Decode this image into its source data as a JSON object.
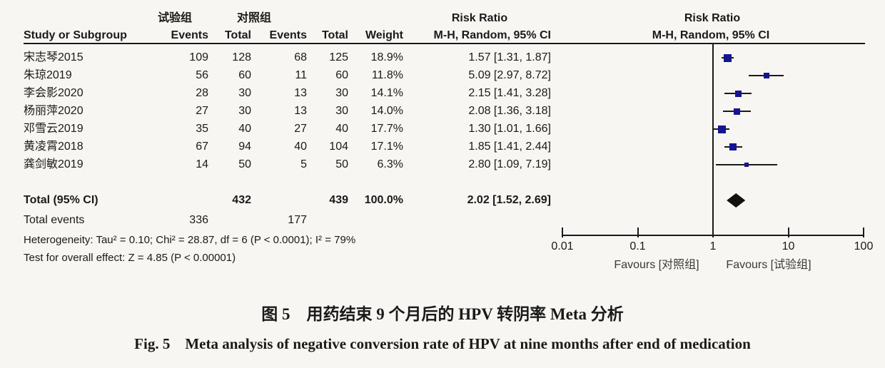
{
  "table": {
    "group1_header": "试验组",
    "group2_header": "对照组",
    "col_study": "Study or Subgroup",
    "col_events": "Events",
    "col_total": "Total",
    "col_weight": "Weight",
    "rr_title": "Risk Ratio",
    "rr_subtitle": "M-H, Random, 95% CI",
    "total_label": "Total (95% CI)",
    "total_events_label": "Total events",
    "heterogeneity": "Heterogeneity: Tau² = 0.10; Chi² = 28.87, df = 6 (P < 0.0001); I² = 79%",
    "overall_effect": "Test for overall effect: Z = 4.85 (P < 0.00001)"
  },
  "chart_data": {
    "type": "forest",
    "effect_measure": "Risk Ratio",
    "model": "M-H, Random, 95% CI",
    "x_scale": "log",
    "x_ticks": [
      "0.01",
      "0.1",
      "1",
      "10",
      "100"
    ],
    "x_range": [
      0.01,
      100
    ],
    "favours_left": "Favours [对照组]",
    "favours_right": "Favours [试验组]",
    "studies": [
      {
        "name": "宋志琴2015",
        "exp_events": "109",
        "exp_total": "128",
        "ctrl_events": "68",
        "ctrl_total": "125",
        "weight": "18.9%",
        "weight_pct": 18.9,
        "rr": 1.57,
        "ci_low": 1.31,
        "ci_high": 1.87,
        "rr_text": "1.57 [1.31, 1.87]"
      },
      {
        "name": "朱琼2019",
        "exp_events": "56",
        "exp_total": "60",
        "ctrl_events": "11",
        "ctrl_total": "60",
        "weight": "11.8%",
        "weight_pct": 11.8,
        "rr": 5.09,
        "ci_low": 2.97,
        "ci_high": 8.72,
        "rr_text": "5.09 [2.97, 8.72]"
      },
      {
        "name": "李会影2020",
        "exp_events": "28",
        "exp_total": "30",
        "ctrl_events": "13",
        "ctrl_total": "30",
        "weight": "14.1%",
        "weight_pct": 14.1,
        "rr": 2.15,
        "ci_low": 1.41,
        "ci_high": 3.28,
        "rr_text": "2.15 [1.41, 3.28]"
      },
      {
        "name": "杨丽萍2020",
        "exp_events": "27",
        "exp_total": "30",
        "ctrl_events": "13",
        "ctrl_total": "30",
        "weight": "14.0%",
        "weight_pct": 14.0,
        "rr": 2.08,
        "ci_low": 1.36,
        "ci_high": 3.18,
        "rr_text": "2.08 [1.36, 3.18]"
      },
      {
        "name": "邓雪云2019",
        "exp_events": "35",
        "exp_total": "40",
        "ctrl_events": "27",
        "ctrl_total": "40",
        "weight": "17.7%",
        "weight_pct": 17.7,
        "rr": 1.3,
        "ci_low": 1.01,
        "ci_high": 1.66,
        "rr_text": "1.30 [1.01, 1.66]"
      },
      {
        "name": "黄凌霄2018",
        "exp_events": "67",
        "exp_total": "94",
        "ctrl_events": "40",
        "ctrl_total": "104",
        "weight": "17.1%",
        "weight_pct": 17.1,
        "rr": 1.85,
        "ci_low": 1.41,
        "ci_high": 2.44,
        "rr_text": "1.85 [1.41, 2.44]"
      },
      {
        "name": "龚剑敏2019",
        "exp_events": "14",
        "exp_total": "50",
        "ctrl_events": "5",
        "ctrl_total": "50",
        "weight": "6.3%",
        "weight_pct": 6.3,
        "rr": 2.8,
        "ci_low": 1.09,
        "ci_high": 7.19,
        "rr_text": "2.80 [1.09, 7.19]"
      }
    ],
    "total": {
      "exp_total": "432",
      "ctrl_total": "439",
      "weight": "100.0%",
      "rr": 2.02,
      "ci_low": 1.52,
      "ci_high": 2.69,
      "rr_text": "2.02 [1.52, 2.69]"
    },
    "total_events": {
      "exp": "336",
      "ctrl": "177"
    }
  },
  "captions": {
    "zh": "图 5　用药结束 9 个月后的 HPV 转阴率 Meta 分析",
    "en": "Fig. 5　Meta analysis of negative conversion rate of HPV at nine months after end of medication"
  },
  "colors": {
    "marker": "#15158f",
    "ci_line": "#1a1a1a",
    "diamond": "#111111",
    "background": "#f7f6f2",
    "text": "#1a1a1a"
  }
}
